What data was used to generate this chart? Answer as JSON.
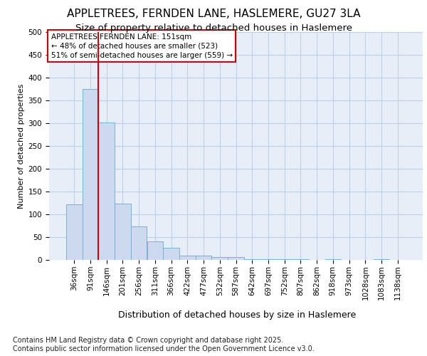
{
  "title_line1": "APPLETREES, FERNDEN LANE, HASLEMERE, GU27 3LA",
  "title_line2": "Size of property relative to detached houses in Haslemere",
  "xlabel": "Distribution of detached houses by size in Haslemere",
  "ylabel": "Number of detached properties",
  "bar_color": "#ccd9ee",
  "bar_edge_color": "#7bafd4",
  "bar_edge_width": 0.7,
  "grid_color": "#c0cfe8",
  "background_color": "#e8eef8",
  "vline_color": "#cc0000",
  "categories": [
    "36sqm",
    "91sqm",
    "146sqm",
    "201sqm",
    "256sqm",
    "311sqm",
    "366sqm",
    "422sqm",
    "477sqm",
    "532sqm",
    "587sqm",
    "642sqm",
    "697sqm",
    "752sqm",
    "807sqm",
    "862sqm",
    "918sqm",
    "973sqm",
    "1028sqm",
    "1083sqm",
    "1138sqm"
  ],
  "values": [
    122,
    375,
    302,
    123,
    73,
    41,
    27,
    9,
    10,
    7,
    6,
    2,
    1,
    2,
    1,
    0,
    1,
    0,
    0,
    2,
    0
  ],
  "ylim": [
    0,
    500
  ],
  "yticks": [
    0,
    50,
    100,
    150,
    200,
    250,
    300,
    350,
    400,
    450,
    500
  ],
  "annotation_text": "APPLETREES FERNDEN LANE: 151sqm\n← 48% of detached houses are smaller (523)\n51% of semi-detached houses are larger (559) →",
  "annotation_box_color": "white",
  "annotation_box_edge": "#cc0000",
  "footnote": "Contains HM Land Registry data © Crown copyright and database right 2025.\nContains public sector information licensed under the Open Government Licence v3.0.",
  "footnote_fontsize": 7,
  "title1_fontsize": 11,
  "title2_fontsize": 9.5,
  "xlabel_fontsize": 9,
  "ylabel_fontsize": 8,
  "tick_fontsize": 7.5,
  "annotation_fontsize": 7.5
}
